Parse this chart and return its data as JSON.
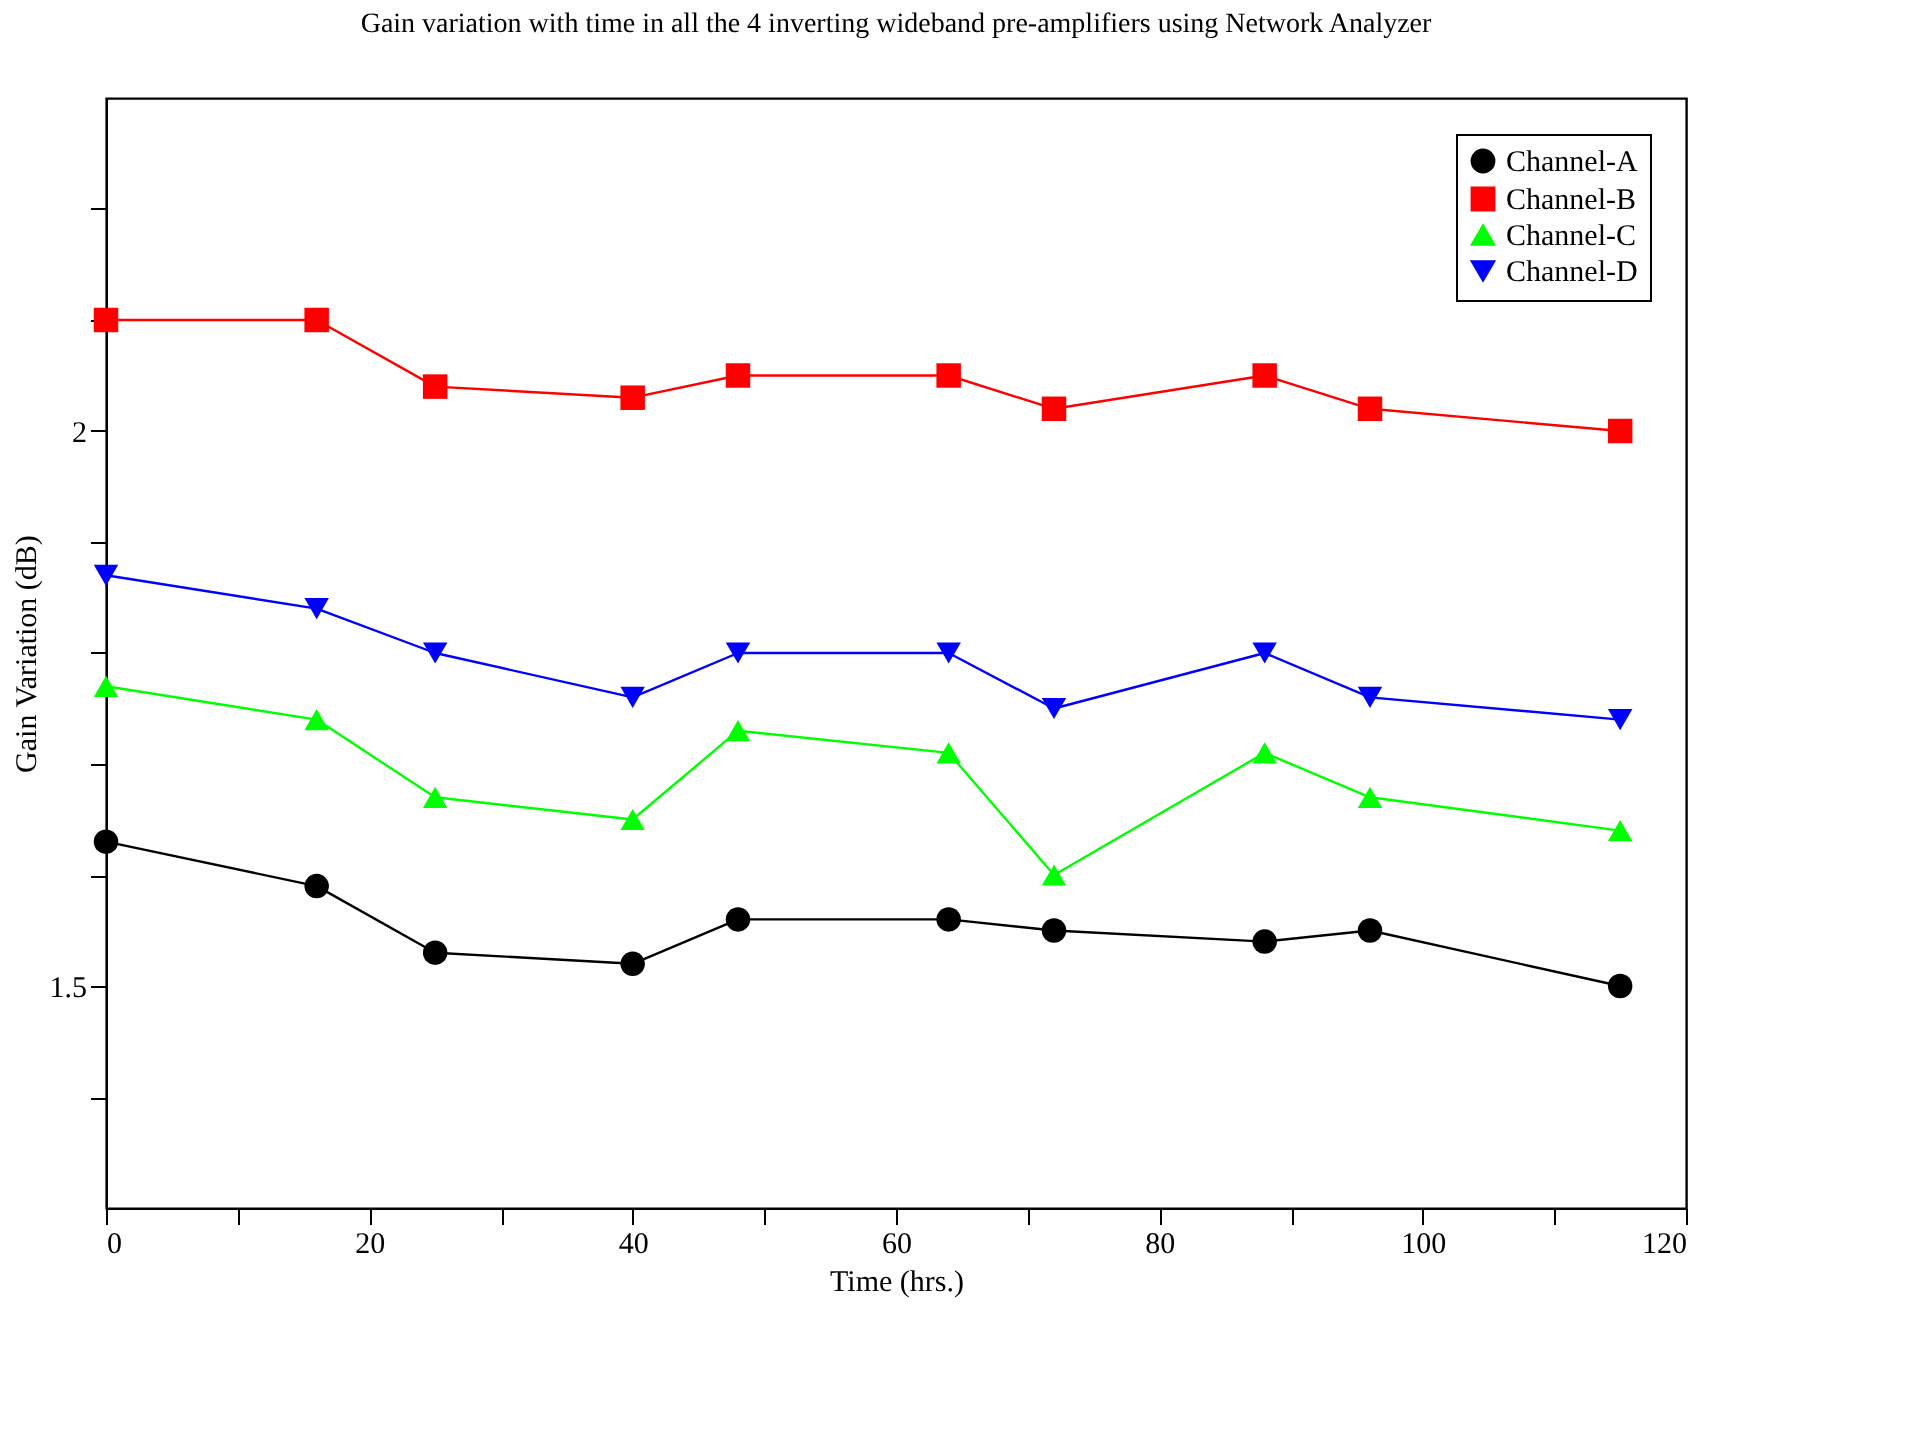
{
  "chart_data": {
    "type": "line",
    "title": "Gain variation with time in all the 4 inverting wideband pre-amplifiers using Network Analyzer",
    "xlabel": "Time (hrs.)",
    "ylabel": "Gain Variation (dB)",
    "x": [
      0,
      16,
      25,
      40,
      48,
      64,
      72,
      88,
      96,
      115
    ],
    "series": [
      {
        "name": "Channel-A",
        "color": "#000000",
        "marker": "circle",
        "values": [
          1.63,
          1.59,
          1.53,
          1.52,
          1.56,
          1.56,
          1.55,
          1.54,
          1.55,
          1.5
        ]
      },
      {
        "name": "Channel-B",
        "color": "#ff0000",
        "marker": "square",
        "values": [
          2.1,
          2.1,
          2.04,
          2.03,
          2.05,
          2.05,
          2.02,
          2.05,
          2.02,
          2.0
        ]
      },
      {
        "name": "Channel-C",
        "color": "#00ff00",
        "marker": "triangle",
        "values": [
          1.77,
          1.74,
          1.67,
          1.65,
          1.73,
          1.71,
          1.6,
          1.71,
          1.67,
          1.64
        ]
      },
      {
        "name": "Channel-D",
        "color": "#0000ff",
        "marker": "triangle-down",
        "values": [
          1.87,
          1.84,
          1.8,
          1.76,
          1.8,
          1.8,
          1.75,
          1.8,
          1.76,
          1.74
        ]
      }
    ],
    "xlim": [
      0,
      120
    ],
    "xticks": [
      0,
      {
        "value": 10,
        "label": null
      },
      20,
      {
        "value": 30,
        "label": null
      },
      40,
      {
        "value": 50,
        "label": null
      },
      60,
      {
        "value": 70,
        "label": null
      },
      80,
      {
        "value": 90,
        "label": null
      },
      100,
      {
        "value": 110,
        "label": null
      },
      120
    ],
    "ylim": [
      1.3,
      2.3
    ],
    "yticks": [
      {
        "value": 1.4,
        "label": null
      },
      1.5,
      {
        "value": 1.6,
        "label": null
      },
      {
        "value": 1.7,
        "label": null
      },
      {
        "value": 1.8,
        "label": null
      },
      {
        "value": 1.9,
        "label": null
      },
      2,
      {
        "value": 2.1,
        "label": null
      },
      {
        "value": 2.2,
        "label": null
      }
    ],
    "grid": false,
    "legend": "top right",
    "line_style": "solid"
  }
}
